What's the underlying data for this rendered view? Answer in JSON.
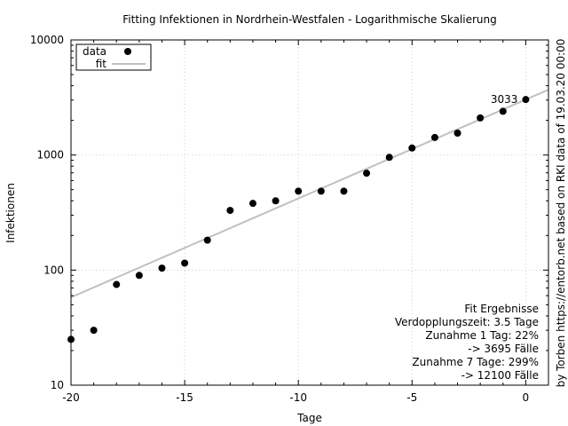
{
  "chart_data": {
    "type": "scatter",
    "title": "Fitting Infektionen in Nordrhein-Westfalen - Logarithmische Skalierung",
    "xlabel": "Tage",
    "ylabel": "Infektionen",
    "xlim": [
      -20,
      1
    ],
    "ylim": [
      10,
      10000
    ],
    "yscale": "log",
    "xticks": [
      -20,
      -15,
      -10,
      -5,
      0
    ],
    "xtick_labels": [
      "-20",
      "-15",
      "-10",
      "-5",
      "0"
    ],
    "yticks": [
      10,
      100,
      1000,
      10000
    ],
    "ytick_labels": [
      "10",
      "100",
      "1000",
      "10000"
    ],
    "grid": true,
    "legend_position": "top-left",
    "series": [
      {
        "name": "data",
        "type": "scatter",
        "color": "#000000",
        "x": [
          -20,
          -19,
          -18,
          -17,
          -16,
          -15,
          -14,
          -13,
          -12,
          -11,
          -10,
          -9,
          -8,
          -7,
          -6,
          -5,
          -4,
          -3,
          -2,
          -1,
          0
        ],
        "y": [
          25,
          30,
          75,
          90,
          104,
          115,
          182,
          330,
          380,
          400,
          485,
          485,
          485,
          695,
          955,
          1150,
          1420,
          1550,
          2100,
          2400,
          3033
        ]
      },
      {
        "name": "fit",
        "type": "line",
        "color": "#c0c0c0",
        "x": [
          -20,
          1
        ],
        "y": [
          58,
          3695
        ]
      }
    ],
    "annotations": {
      "last_point_label": "3033",
      "fit_results": [
        "Fit Ergebnisse",
        "Verdopplungszeit: 3.5 Tage",
        "Zunahme 1 Tag: 22%",
        "-> 3695 Fälle",
        "Zunahme 7 Tage: 299%",
        "-> 12100 Fälle"
      ],
      "credit": "by Torben https://entorb.net based on RKI data of 19.03.20 00:00"
    }
  }
}
